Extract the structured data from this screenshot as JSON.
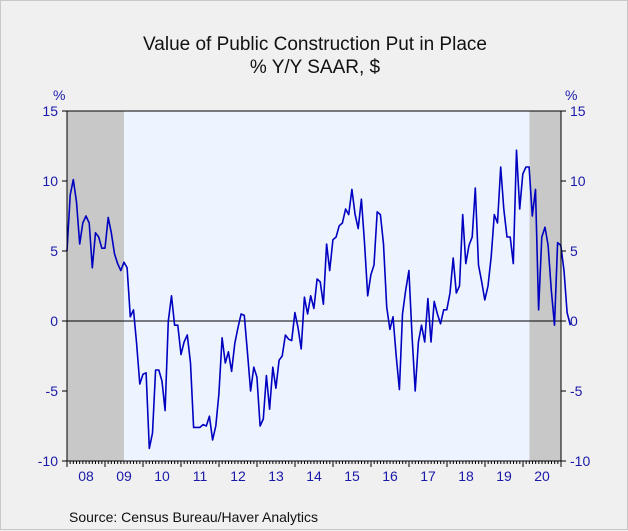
{
  "chart_data": {
    "type": "line",
    "title": "Value of Public Construction Put in Place",
    "subtitle": "% Y/Y   SAAR, $",
    "y_unit_left": "%",
    "y_unit_right": "%",
    "ylim": [
      -10,
      15
    ],
    "yticks": [
      15,
      10,
      5,
      0,
      -5,
      -10
    ],
    "ytick_labels": [
      "15",
      "10",
      "5",
      "0",
      "-5",
      "-10"
    ],
    "x_range": [
      2008.0,
      2021.0
    ],
    "x_labels": [
      "08",
      "09",
      "10",
      "11",
      "12",
      "13",
      "14",
      "15",
      "16",
      "17",
      "18",
      "19",
      "20"
    ],
    "x_label_years": [
      2008,
      2009,
      2010,
      2011,
      2012,
      2013,
      2014,
      2015,
      2016,
      2017,
      2018,
      2019,
      2020
    ],
    "recessions": [
      [
        2008.0,
        2009.5
      ],
      [
        2020.17,
        2021.0
      ]
    ],
    "zero_line": true,
    "line_color": "#0000c0",
    "recession_color": "#c8c8c8",
    "plot_bg": "#eef4ff",
    "series": [
      {
        "start_year": 2008.0,
        "step": 0.0833,
        "values": [
          5.0,
          9.0,
          10.1,
          8.5,
          5.5,
          7.0,
          7.5,
          7.0,
          3.8,
          6.3,
          6.0,
          5.2,
          5.2,
          7.4,
          6.3,
          4.8,
          4.1,
          3.6,
          4.2,
          3.8,
          0.3,
          0.8,
          -1.6,
          -4.5,
          -3.8,
          -3.7,
          -9.1,
          -8.0,
          -3.5,
          -3.5,
          -4.3,
          -6.4,
          0.0,
          1.8,
          -0.3,
          -0.3,
          -2.4,
          -1.5,
          -1.0,
          -3.0,
          -7.6,
          -7.6,
          -7.6,
          -7.4,
          -7.5,
          -6.8,
          -8.5,
          -7.5,
          -5.2,
          -1.2,
          -3.0,
          -2.2,
          -3.6,
          -1.6,
          -0.5,
          0.5,
          0.4,
          -2.2,
          -5.0,
          -3.3,
          -4.0,
          -7.5,
          -7.0,
          -3.9,
          -6.3,
          -3.3,
          -4.8,
          -2.8,
          -2.5,
          -1.0,
          -1.3,
          -1.4,
          0.6,
          -0.5,
          -2.0,
          1.7,
          0.5,
          1.8,
          0.9,
          3.0,
          2.8,
          1.2,
          5.5,
          3.6,
          5.8,
          6.0,
          6.8,
          7.0,
          8.0,
          7.6,
          9.4,
          7.6,
          6.6,
          8.7,
          5.6,
          1.8,
          3.3,
          4.0,
          7.8,
          7.6,
          5.5,
          1.0,
          -0.6,
          0.3,
          -2.5,
          -4.9,
          0.5,
          2.2,
          3.6,
          -1.0,
          -5.0,
          -1.5,
          -0.3,
          -1.5,
          1.6,
          -1.5,
          1.4,
          0.5,
          -0.2,
          0.8,
          0.8,
          2.0,
          4.5,
          2.0,
          2.5,
          7.6,
          4.1,
          5.4,
          6.0,
          9.5,
          4.0,
          2.8,
          1.5,
          2.5,
          4.6,
          7.6,
          7.0,
          11.0,
          8.0,
          6.0,
          6.0,
          4.1,
          12.2,
          8.0,
          10.5,
          11.0,
          11.0,
          7.5,
          9.4,
          0.8,
          6.0,
          6.7,
          5.4,
          2.2,
          -0.3,
          5.6,
          5.4,
          3.6,
          0.6,
          -0.3
        ]
      }
    ],
    "source": "Source:  Census Bureau/Haver Analytics"
  }
}
